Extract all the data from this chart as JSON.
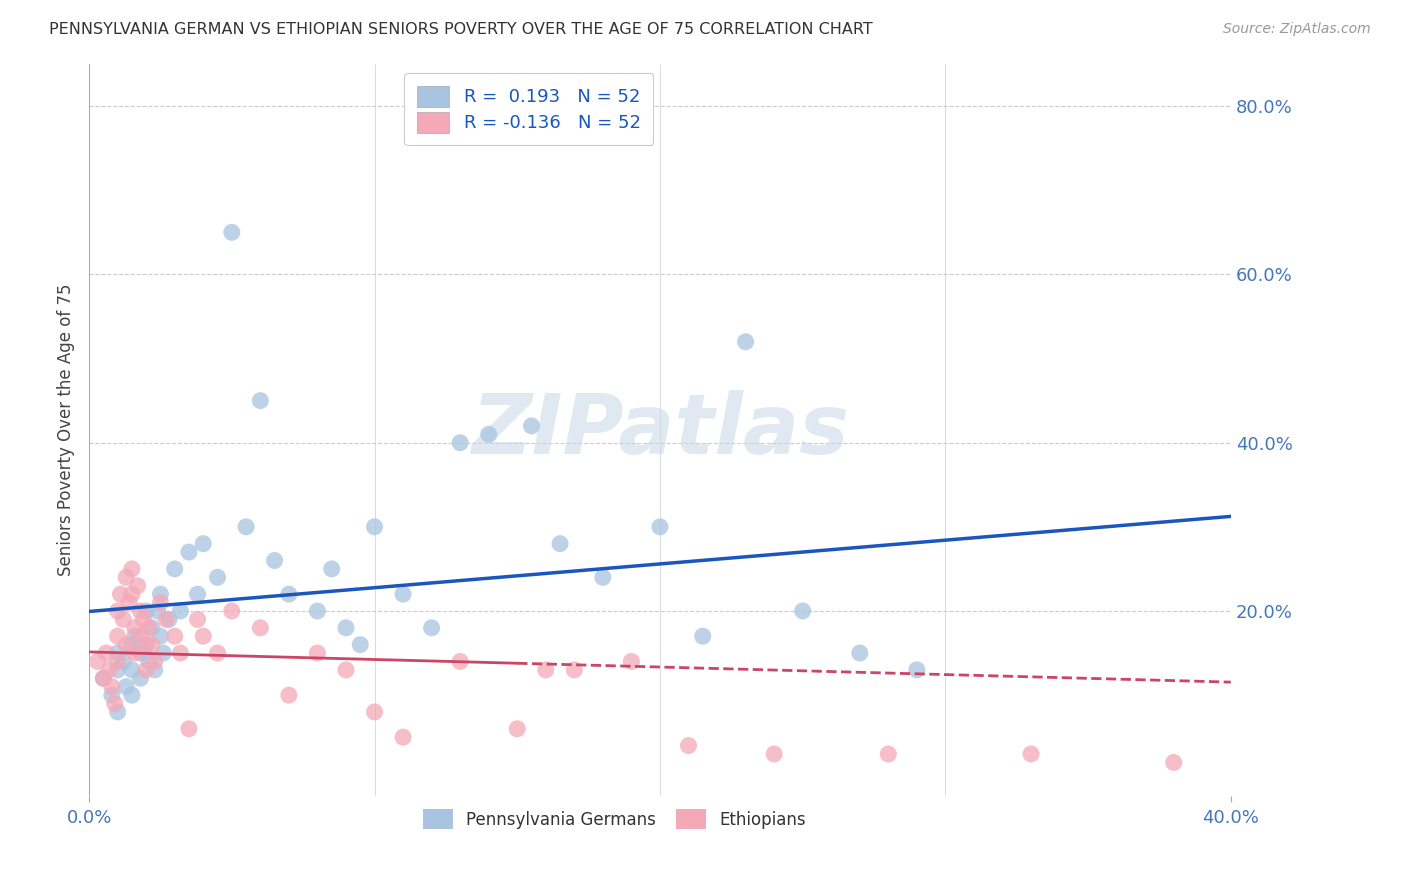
{
  "title": "PENNSYLVANIA GERMAN VS ETHIOPIAN SENIORS POVERTY OVER THE AGE OF 75 CORRELATION CHART",
  "source": "Source: ZipAtlas.com",
  "ylabel_left": "Seniors Poverty Over the Age of 75",
  "xlim": [
    0.0,
    0.4
  ],
  "ylim": [
    -0.02,
    0.85
  ],
  "R_blue": 0.193,
  "R_pink": -0.136,
  "N_blue": 52,
  "N_pink": 52,
  "blue_color": "#A8C4E0",
  "pink_color": "#F4A8B8",
  "trend_blue": "#1A56BB",
  "trend_pink": "#CC4466",
  "blue_scatter_x": [
    0.005,
    0.008,
    0.01,
    0.01,
    0.01,
    0.012,
    0.013,
    0.015,
    0.015,
    0.015,
    0.016,
    0.018,
    0.018,
    0.02,
    0.02,
    0.021,
    0.022,
    0.023,
    0.024,
    0.025,
    0.025,
    0.026,
    0.028,
    0.03,
    0.032,
    0.035,
    0.038,
    0.04,
    0.045,
    0.05,
    0.055,
    0.06,
    0.065,
    0.07,
    0.08,
    0.085,
    0.09,
    0.095,
    0.1,
    0.11,
    0.12,
    0.13,
    0.14,
    0.155,
    0.165,
    0.18,
    0.2,
    0.215,
    0.23,
    0.25,
    0.27,
    0.29
  ],
  "blue_scatter_y": [
    0.12,
    0.1,
    0.15,
    0.13,
    0.08,
    0.14,
    0.11,
    0.16,
    0.13,
    0.1,
    0.17,
    0.15,
    0.12,
    0.2,
    0.16,
    0.14,
    0.18,
    0.13,
    0.2,
    0.22,
    0.17,
    0.15,
    0.19,
    0.25,
    0.2,
    0.27,
    0.22,
    0.28,
    0.24,
    0.65,
    0.3,
    0.45,
    0.26,
    0.22,
    0.2,
    0.25,
    0.18,
    0.16,
    0.3,
    0.22,
    0.18,
    0.4,
    0.41,
    0.42,
    0.28,
    0.24,
    0.3,
    0.17,
    0.52,
    0.2,
    0.15,
    0.13
  ],
  "pink_scatter_x": [
    0.003,
    0.005,
    0.006,
    0.007,
    0.008,
    0.009,
    0.01,
    0.01,
    0.01,
    0.011,
    0.012,
    0.013,
    0.013,
    0.014,
    0.015,
    0.015,
    0.016,
    0.016,
    0.017,
    0.018,
    0.018,
    0.019,
    0.02,
    0.02,
    0.021,
    0.022,
    0.023,
    0.025,
    0.027,
    0.03,
    0.032,
    0.035,
    0.038,
    0.04,
    0.045,
    0.05,
    0.06,
    0.07,
    0.08,
    0.09,
    0.1,
    0.11,
    0.13,
    0.15,
    0.16,
    0.17,
    0.19,
    0.21,
    0.24,
    0.28,
    0.33,
    0.38
  ],
  "pink_scatter_y": [
    0.14,
    0.12,
    0.15,
    0.13,
    0.11,
    0.09,
    0.2,
    0.17,
    0.14,
    0.22,
    0.19,
    0.16,
    0.24,
    0.21,
    0.25,
    0.22,
    0.18,
    0.15,
    0.23,
    0.2,
    0.17,
    0.19,
    0.16,
    0.13,
    0.18,
    0.16,
    0.14,
    0.21,
    0.19,
    0.17,
    0.15,
    0.06,
    0.19,
    0.17,
    0.15,
    0.2,
    0.18,
    0.1,
    0.15,
    0.13,
    0.08,
    0.05,
    0.14,
    0.06,
    0.13,
    0.13,
    0.14,
    0.04,
    0.03,
    0.03,
    0.03,
    0.02
  ],
  "watermark_text": "ZIPatlas",
  "background_color": "#ffffff",
  "grid_color": "#cccccc",
  "trend_solid_end": 0.15,
  "legend_blue_label": "R =  0.193   N = 52",
  "legend_pink_label": "R = -0.136   N = 52"
}
